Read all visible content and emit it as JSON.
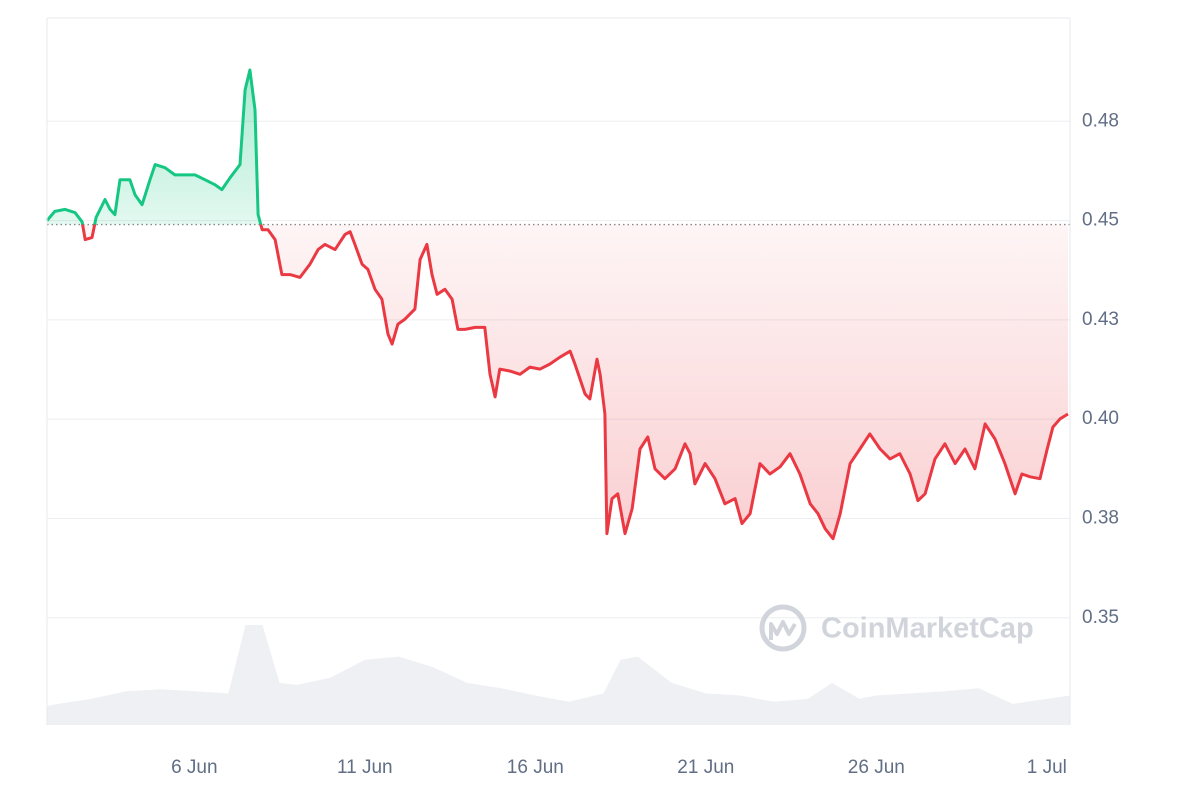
{
  "chart_data": {
    "type": "line",
    "watermark": "CoinMarketCap",
    "x": [
      1.68,
      1.91,
      2.21,
      2.5,
      2.71,
      2.8,
      3.0,
      3.12,
      3.38,
      3.53,
      3.67,
      3.82,
      4.11,
      4.26,
      4.47,
      4.7,
      4.85,
      5.14,
      5.43,
      5.73,
      6.02,
      6.31,
      6.61,
      6.81,
      7.05,
      7.34,
      7.49,
      7.63,
      7.78,
      7.87,
      7.99,
      8.16,
      8.37,
      8.57,
      8.81,
      9.1,
      9.39,
      9.63,
      9.83,
      10.13,
      10.42,
      10.57,
      10.71,
      10.92,
      11.09,
      11.3,
      11.5,
      11.68,
      11.8,
      11.97,
      12.18,
      12.47,
      12.62,
      12.82,
      12.97,
      13.12,
      13.35,
      13.56,
      13.73,
      13.94,
      14.23,
      14.52,
      14.67,
      14.82,
      14.96,
      15.26,
      15.55,
      15.84,
      16.14,
      16.43,
      16.72,
      17.02,
      17.16,
      17.46,
      17.6,
      17.81,
      17.9,
      18.04,
      18.1,
      18.25,
      18.42,
      18.63,
      18.84,
      19.07,
      19.3,
      19.51,
      19.8,
      20.1,
      20.39,
      20.54,
      20.68,
      20.98,
      21.27,
      21.56,
      21.86,
      22.06,
      22.3,
      22.59,
      22.88,
      23.18,
      23.47,
      23.76,
      24.06,
      24.29,
      24.5,
      24.73,
      24.94,
      25.23,
      25.52,
      25.81,
      26.11,
      26.4,
      26.69,
      26.99,
      27.22,
      27.43,
      27.72,
      28.01,
      28.31,
      28.6,
      28.89,
      29.19,
      29.48,
      29.77,
      30.07,
      30.27,
      30.51,
      30.8,
      31.01,
      31.18,
      31.39,
      31.62
    ],
    "values": [
      0.45,
      0.4523,
      0.4528,
      0.452,
      0.4497,
      0.4452,
      0.4457,
      0.4508,
      0.4553,
      0.4528,
      0.4515,
      0.4603,
      0.4603,
      0.4565,
      0.454,
      0.4603,
      0.4641,
      0.4633,
      0.4615,
      0.4615,
      0.4615,
      0.4603,
      0.459,
      0.4578,
      0.4608,
      0.4641,
      0.4829,
      0.4879,
      0.4779,
      0.4515,
      0.4477,
      0.4477,
      0.4452,
      0.4364,
      0.4364,
      0.4357,
      0.439,
      0.4427,
      0.444,
      0.4427,
      0.4465,
      0.4472,
      0.444,
      0.439,
      0.4377,
      0.4327,
      0.4302,
      0.4214,
      0.4189,
      0.4239,
      0.4252,
      0.4277,
      0.4402,
      0.444,
      0.4364,
      0.4314,
      0.4327,
      0.4302,
      0.4226,
      0.4226,
      0.4231,
      0.4231,
      0.4113,
      0.4056,
      0.4126,
      0.4121,
      0.4113,
      0.4131,
      0.4126,
      0.4139,
      0.4156,
      0.4171,
      0.4139,
      0.4063,
      0.4051,
      0.4151,
      0.4113,
      0.4013,
      0.3712,
      0.38,
      0.3812,
      0.3712,
      0.3775,
      0.3925,
      0.3955,
      0.3875,
      0.385,
      0.3875,
      0.3938,
      0.3913,
      0.3837,
      0.3888,
      0.385,
      0.3787,
      0.38,
      0.3737,
      0.3762,
      0.3888,
      0.3862,
      0.388,
      0.3913,
      0.3862,
      0.3787,
      0.3762,
      0.3724,
      0.3699,
      0.3762,
      0.3888,
      0.3925,
      0.3963,
      0.3925,
      0.39,
      0.3913,
      0.3862,
      0.3795,
      0.3812,
      0.39,
      0.3938,
      0.3888,
      0.3925,
      0.3875,
      0.3988,
      0.395,
      0.3888,
      0.3812,
      0.3862,
      0.3855,
      0.385,
      0.3925,
      0.398,
      0.4001,
      0.4013
    ],
    "baseline": 0.449,
    "up_color": "#16c784",
    "down_color": "#ea3943",
    "volume": {
      "color": "#eef0f3",
      "x": [
        1.68,
        2,
        3,
        4,
        5,
        6,
        7,
        7.5,
        8,
        8.5,
        9,
        10,
        11,
        12,
        13,
        14,
        15,
        16,
        17,
        18,
        18.5,
        19,
        20,
        21,
        22,
        23,
        24,
        24.7,
        25.5,
        26,
        27,
        28,
        29,
        30,
        31.68
      ],
      "values": [
        18,
        20,
        25,
        32,
        34,
        32,
        30,
        95,
        95,
        40,
        38,
        45,
        62,
        65,
        55,
        40,
        35,
        28,
        22,
        30,
        62,
        65,
        40,
        30,
        28,
        22,
        25,
        40,
        25,
        28,
        30,
        32,
        35,
        20,
        28
      ]
    },
    "xlim": [
      1.68,
      31.68
    ],
    "xticks": [
      {
        "value": 6,
        "label": "6 Jun"
      },
      {
        "value": 11,
        "label": "11 Jun"
      },
      {
        "value": 16,
        "label": "16 Jun"
      },
      {
        "value": 21,
        "label": "21 Jun"
      },
      {
        "value": 26,
        "label": "26 Jun"
      },
      {
        "value": 31,
        "label": "1 Jul"
      }
    ],
    "ylim": [
      0.323,
      0.501
    ],
    "yticks": [
      {
        "value": 0.35,
        "label": "0.35"
      },
      {
        "value": 0.375,
        "label": "0.38"
      },
      {
        "value": 0.4,
        "label": "0.40"
      },
      {
        "value": 0.425,
        "label": "0.43"
      },
      {
        "value": 0.45,
        "label": "0.45"
      },
      {
        "value": 0.475,
        "label": "0.48"
      }
    ],
    "grid": true
  }
}
